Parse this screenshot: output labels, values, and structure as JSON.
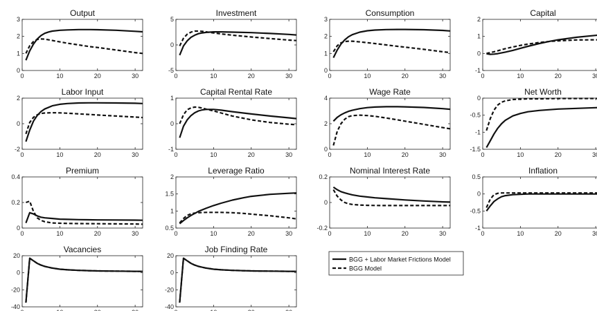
{
  "chart_data": [
    {
      "type": "line",
      "title": "Output",
      "xlim": [
        0,
        32
      ],
      "ylim": [
        0,
        3
      ],
      "xticks": [
        "0",
        "10",
        "20",
        "30"
      ],
      "yticks": [
        "0",
        "1",
        "2",
        "3"
      ],
      "x": [
        1,
        2,
        3,
        4,
        5,
        6,
        7,
        8,
        10,
        12,
        15,
        18,
        20,
        25,
        30,
        32
      ],
      "series": [
        {
          "name": "BGG + Labor Market Frictions Model",
          "values": [
            0.6,
            1.15,
            1.55,
            1.85,
            2.05,
            2.18,
            2.26,
            2.31,
            2.36,
            2.38,
            2.4,
            2.4,
            2.39,
            2.36,
            2.3,
            2.27
          ]
        },
        {
          "name": "BGG Model",
          "values": [
            1.0,
            1.45,
            1.7,
            1.82,
            1.85,
            1.84,
            1.8,
            1.76,
            1.68,
            1.6,
            1.5,
            1.4,
            1.35,
            1.2,
            1.05,
            1.0
          ]
        }
      ]
    },
    {
      "type": "line",
      "title": "Investment",
      "xlim": [
        0,
        32
      ],
      "ylim": [
        -5,
        5
      ],
      "xticks": [
        "0",
        "10",
        "20",
        "30"
      ],
      "yticks": [
        "-5",
        "0",
        "5"
      ],
      "x": [
        1,
        2,
        3,
        4,
        5,
        6,
        7,
        8,
        10,
        12,
        15,
        20,
        25,
        30,
        32
      ],
      "series": [
        {
          "name": "BGG + Labor Market Frictions Model",
          "values": [
            -2.0,
            -0.2,
            0.8,
            1.5,
            1.9,
            2.2,
            2.35,
            2.45,
            2.55,
            2.55,
            2.5,
            2.4,
            2.25,
            2.05,
            1.95
          ]
        },
        {
          "name": "BGG Model",
          "values": [
            -0.2,
            1.3,
            2.1,
            2.5,
            2.7,
            2.7,
            2.65,
            2.55,
            2.35,
            2.15,
            1.9,
            1.55,
            1.25,
            0.95,
            0.85
          ]
        }
      ]
    },
    {
      "type": "line",
      "title": "Consumption",
      "xlim": [
        0,
        32
      ],
      "ylim": [
        0,
        3
      ],
      "xticks": [
        "0",
        "10",
        "20",
        "30"
      ],
      "yticks": [
        "0",
        "1",
        "2",
        "3"
      ],
      "x": [
        1,
        2,
        3,
        4,
        5,
        6,
        8,
        10,
        12,
        15,
        18,
        20,
        25,
        30,
        32
      ],
      "series": [
        {
          "name": "BGG + Labor Market Frictions Model",
          "values": [
            0.75,
            1.2,
            1.55,
            1.8,
            1.98,
            2.1,
            2.25,
            2.33,
            2.37,
            2.4,
            2.41,
            2.41,
            2.39,
            2.35,
            2.32
          ]
        },
        {
          "name": "BGG Model",
          "values": [
            1.1,
            1.45,
            1.62,
            1.7,
            1.72,
            1.72,
            1.68,
            1.63,
            1.58,
            1.5,
            1.42,
            1.37,
            1.24,
            1.1,
            1.05
          ]
        }
      ]
    },
    {
      "type": "line",
      "title": "Capital",
      "xlim": [
        0,
        32
      ],
      "ylim": [
        -1,
        2
      ],
      "xticks": [
        "0",
        "10",
        "20",
        "30"
      ],
      "yticks": [
        "-1",
        "0",
        "1",
        "2"
      ],
      "x": [
        1,
        2,
        3,
        4,
        6,
        8,
        10,
        12,
        15,
        18,
        20,
        25,
        30,
        32
      ],
      "series": [
        {
          "name": "BGG + Labor Market Frictions Model",
          "values": [
            -0.02,
            -0.05,
            -0.04,
            -0.01,
            0.08,
            0.18,
            0.3,
            0.42,
            0.58,
            0.72,
            0.8,
            0.95,
            1.06,
            1.1
          ]
        },
        {
          "name": "BGG Model",
          "values": [
            0.0,
            0.05,
            0.1,
            0.16,
            0.28,
            0.38,
            0.47,
            0.55,
            0.64,
            0.71,
            0.74,
            0.79,
            0.8,
            0.8
          ]
        }
      ]
    },
    {
      "type": "line",
      "title": "Labor Input",
      "xlim": [
        0,
        32
      ],
      "ylim": [
        -2,
        2
      ],
      "xticks": [
        "0",
        "10",
        "20",
        "30"
      ],
      "yticks": [
        "-2",
        "0",
        "2"
      ],
      "x": [
        1,
        2,
        3,
        4,
        5,
        6,
        8,
        10,
        12,
        15,
        18,
        20,
        25,
        30,
        32
      ],
      "series": [
        {
          "name": "BGG + Labor Market Frictions Model",
          "values": [
            -1.4,
            -0.5,
            0.2,
            0.65,
            0.95,
            1.15,
            1.4,
            1.52,
            1.58,
            1.62,
            1.63,
            1.63,
            1.62,
            1.6,
            1.58
          ]
        },
        {
          "name": "BGG Model",
          "values": [
            -0.8,
            0.1,
            0.5,
            0.7,
            0.8,
            0.84,
            0.86,
            0.85,
            0.82,
            0.77,
            0.72,
            0.68,
            0.6,
            0.52,
            0.48
          ]
        }
      ]
    },
    {
      "type": "line",
      "title": "Capital Rental Rate",
      "xlim": [
        0,
        32
      ],
      "ylim": [
        -1,
        1
      ],
      "xticks": [
        "0",
        "10",
        "20",
        "30"
      ],
      "yticks": [
        "-1",
        "0",
        "1"
      ],
      "x": [
        1,
        2,
        3,
        4,
        5,
        6,
        7,
        8,
        10,
        12,
        15,
        20,
        25,
        30,
        32
      ],
      "series": [
        {
          "name": "BGG + Labor Market Frictions Model",
          "values": [
            -0.55,
            -0.1,
            0.15,
            0.32,
            0.43,
            0.5,
            0.54,
            0.56,
            0.56,
            0.53,
            0.47,
            0.38,
            0.3,
            0.23,
            0.2
          ]
        },
        {
          "name": "BGG Model",
          "values": [
            0.0,
            0.35,
            0.55,
            0.62,
            0.65,
            0.64,
            0.61,
            0.57,
            0.5,
            0.42,
            0.3,
            0.15,
            0.05,
            -0.02,
            -0.04
          ]
        }
      ]
    },
    {
      "type": "line",
      "title": "Wage Rate",
      "xlim": [
        0,
        32
      ],
      "ylim": [
        0,
        4
      ],
      "xticks": [
        "0",
        "10",
        "20",
        "30"
      ],
      "yticks": [
        "0",
        "2",
        "4"
      ],
      "x": [
        1,
        2,
        3,
        4,
        5,
        6,
        8,
        10,
        12,
        15,
        18,
        20,
        25,
        30,
        32
      ],
      "series": [
        {
          "name": "BGG + Labor Market Frictions Model",
          "values": [
            2.2,
            2.5,
            2.7,
            2.85,
            2.97,
            3.05,
            3.18,
            3.26,
            3.3,
            3.33,
            3.33,
            3.32,
            3.27,
            3.18,
            3.13
          ]
        },
        {
          "name": "BGG Model",
          "values": [
            0.3,
            1.4,
            2.0,
            2.35,
            2.55,
            2.63,
            2.67,
            2.64,
            2.58,
            2.45,
            2.3,
            2.2,
            1.95,
            1.7,
            1.6
          ]
        }
      ]
    },
    {
      "type": "line",
      "title": "Net Worth",
      "xlim": [
        0,
        32
      ],
      "ylim": [
        -1.5,
        0
      ],
      "xticks": [
        "0",
        "10",
        "20",
        "30"
      ],
      "yticks": [
        "-1.5",
        "-1",
        "-0.5",
        "0"
      ],
      "x": [
        1,
        2,
        3,
        4,
        5,
        6,
        8,
        10,
        12,
        15,
        20,
        25,
        30,
        32
      ],
      "series": [
        {
          "name": "BGG + Labor Market Frictions Model",
          "values": [
            -1.45,
            -1.25,
            -1.05,
            -0.88,
            -0.75,
            -0.65,
            -0.52,
            -0.45,
            -0.4,
            -0.36,
            -0.32,
            -0.3,
            -0.28,
            -0.27
          ]
        },
        {
          "name": "BGG Model",
          "values": [
            -0.95,
            -0.6,
            -0.35,
            -0.2,
            -0.12,
            -0.08,
            -0.04,
            -0.03,
            -0.02,
            -0.02,
            -0.01,
            -0.01,
            -0.01,
            -0.01
          ]
        }
      ]
    },
    {
      "type": "line",
      "title": "Premium",
      "xlim": [
        0,
        32
      ],
      "ylim": [
        0,
        0.4
      ],
      "xticks": [
        "0",
        "10",
        "20",
        "30"
      ],
      "yticks": [
        "0",
        "0.2",
        "0.4"
      ],
      "x": [
        1,
        2,
        3,
        4,
        5,
        6,
        8,
        10,
        12,
        15,
        20,
        25,
        30,
        32
      ],
      "series": [
        {
          "name": "BGG + Labor Market Frictions Model",
          "values": [
            0.04,
            0.12,
            0.11,
            0.095,
            0.085,
            0.08,
            0.075,
            0.07,
            0.068,
            0.066,
            0.064,
            0.063,
            0.062,
            0.061
          ]
        },
        {
          "name": "BGG Model",
          "values": [
            0.2,
            0.21,
            0.13,
            0.08,
            0.06,
            0.05,
            0.04,
            0.038,
            0.036,
            0.035,
            0.034,
            0.033,
            0.032,
            0.03
          ]
        }
      ]
    },
    {
      "type": "line",
      "title": "Leverage Ratio",
      "xlim": [
        0,
        32
      ],
      "ylim": [
        0.5,
        2
      ],
      "xticks": [
        "0",
        "10",
        "20",
        "30"
      ],
      "yticks": [
        "0.5",
        "1",
        "1.5",
        "2"
      ],
      "x": [
        1,
        2,
        3,
        4,
        5,
        6,
        8,
        10,
        12,
        15,
        18,
        20,
        25,
        30,
        32
      ],
      "series": [
        {
          "name": "BGG + Labor Market Frictions Model",
          "values": [
            0.63,
            0.72,
            0.8,
            0.87,
            0.93,
            0.99,
            1.08,
            1.16,
            1.23,
            1.32,
            1.39,
            1.43,
            1.49,
            1.52,
            1.53
          ]
        },
        {
          "name": "BGG Model",
          "values": [
            0.65,
            0.78,
            0.87,
            0.92,
            0.94,
            0.95,
            0.96,
            0.96,
            0.96,
            0.95,
            0.93,
            0.91,
            0.86,
            0.8,
            0.77
          ]
        }
      ]
    },
    {
      "type": "line",
      "title": "Nominal Interest Rate",
      "xlim": [
        0,
        32
      ],
      "ylim": [
        -0.2,
        0.2
      ],
      "xticks": [
        "0",
        "10",
        "20",
        "30"
      ],
      "yticks": [
        "-0.2",
        "0",
        "0.2"
      ],
      "x": [
        1,
        2,
        3,
        4,
        5,
        6,
        8,
        10,
        12,
        15,
        20,
        25,
        30,
        32
      ],
      "series": [
        {
          "name": "BGG + Labor Market Frictions Model",
          "values": [
            0.12,
            0.1,
            0.085,
            0.075,
            0.067,
            0.06,
            0.05,
            0.043,
            0.037,
            0.03,
            0.02,
            0.012,
            0.005,
            0.003
          ]
        },
        {
          "name": "BGG Model",
          "values": [
            0.1,
            0.05,
            0.02,
            0.0,
            -0.01,
            -0.015,
            -0.02,
            -0.022,
            -0.023,
            -0.024,
            -0.024,
            -0.024,
            -0.024,
            -0.024
          ]
        }
      ]
    },
    {
      "type": "line",
      "title": "Inflation",
      "xlim": [
        0,
        32
      ],
      "ylim": [
        -1,
        0.5
      ],
      "xticks": [
        "0",
        "10",
        "20",
        "30"
      ],
      "yticks": [
        "-1",
        "-0.5",
        "0",
        "0.5"
      ],
      "x": [
        1,
        2,
        3,
        4,
        5,
        6,
        8,
        10,
        12,
        15,
        20,
        25,
        30,
        32
      ],
      "series": [
        {
          "name": "BGG + Labor Market Frictions Model",
          "values": [
            -0.5,
            -0.35,
            -0.22,
            -0.14,
            -0.08,
            -0.05,
            -0.02,
            -0.01,
            0.0,
            0.0,
            0.0,
            0.0,
            0.0,
            0.0
          ]
        },
        {
          "name": "BGG Model",
          "values": [
            -0.4,
            -0.15,
            -0.02,
            0.02,
            0.03,
            0.03,
            0.03,
            0.03,
            0.03,
            0.03,
            0.03,
            0.03,
            0.03,
            0.03
          ]
        }
      ]
    },
    {
      "type": "line",
      "title": "Vacancies",
      "xlim": [
        0,
        32
      ],
      "ylim": [
        -40,
        20
      ],
      "xticks": [
        "0",
        "10",
        "20",
        "30"
      ],
      "yticks": [
        "-40",
        "-20",
        "0",
        "20"
      ],
      "x": [
        1,
        2,
        3,
        4,
        5,
        6,
        8,
        10,
        12,
        15,
        20,
        25,
        30,
        32
      ],
      "series": [
        {
          "name": "BGG + Labor Market Frictions Model",
          "values": [
            -35,
            17,
            14,
            11,
            9,
            7.5,
            5.5,
            4.2,
            3.5,
            2.8,
            2.2,
            1.9,
            1.7,
            1.6
          ]
        },
        {
          "name": "BGG Model",
          "values": [
            -35,
            17,
            14,
            11,
            9,
            7.5,
            5.5,
            4.2,
            3.5,
            2.8,
            2.2,
            1.9,
            1.7,
            1.6
          ]
        }
      ]
    },
    {
      "type": "line",
      "title": "Job Finding Rate",
      "xlim": [
        0,
        32
      ],
      "ylim": [
        -40,
        20
      ],
      "xticks": [
        "0",
        "10",
        "20",
        "30"
      ],
      "yticks": [
        "-40",
        "-20",
        "0",
        "20"
      ],
      "x": [
        1,
        2,
        3,
        4,
        5,
        6,
        8,
        10,
        12,
        15,
        20,
        25,
        30,
        32
      ],
      "series": [
        {
          "name": "BGG + Labor Market Frictions Model",
          "values": [
            -35,
            17,
            14,
            11,
            9,
            7.5,
            5.5,
            4.2,
            3.5,
            2.8,
            2.2,
            1.9,
            1.7,
            1.6
          ]
        },
        {
          "name": "BGG Model",
          "values": [
            -35,
            17,
            14,
            11,
            9,
            7.5,
            5.5,
            4.2,
            3.5,
            2.8,
            2.2,
            1.9,
            1.7,
            1.6
          ]
        }
      ]
    }
  ],
  "legend": {
    "placement": "row 4, columns 3-4",
    "entries": [
      {
        "label": "BGG + Labor Market Frictions Model",
        "style": "solid"
      },
      {
        "label": "BGG Model",
        "style": "dashed"
      }
    ]
  },
  "colors": {
    "line": "#111111",
    "axis": "#222222",
    "background": "#ffffff"
  }
}
